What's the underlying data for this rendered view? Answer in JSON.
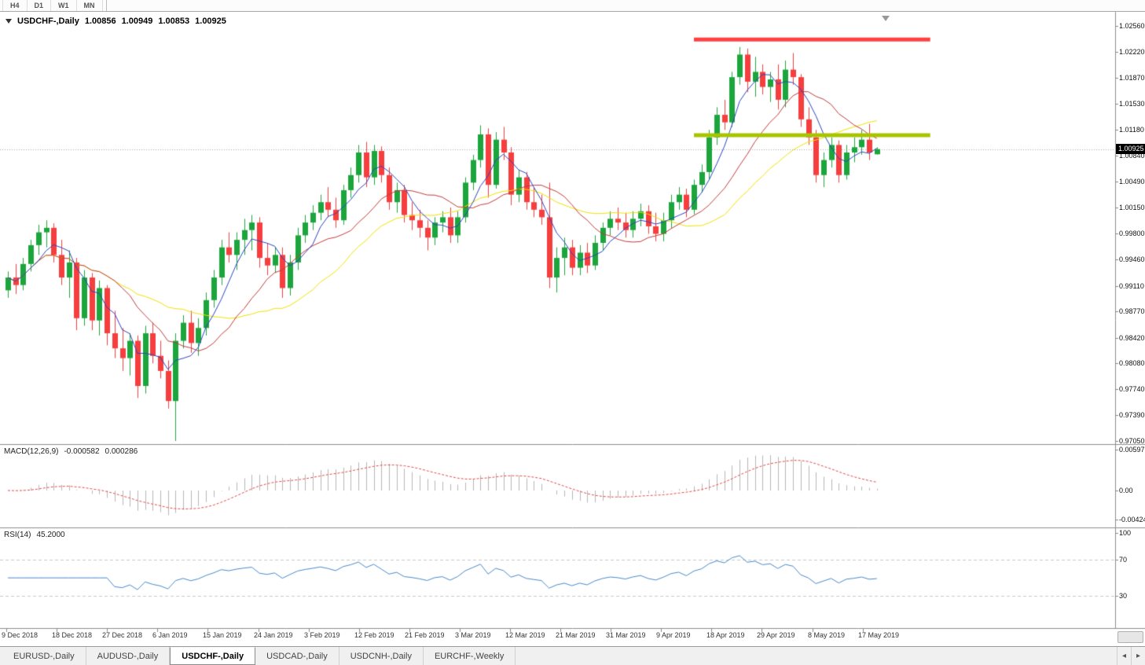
{
  "toolbar": {
    "timeframes": [
      "H4",
      "D1",
      "W1",
      "MN"
    ]
  },
  "chart_header": {
    "symbol": "USDCHF-,Daily",
    "open": "1.00856",
    "high": "1.00949",
    "low": "1.00853",
    "close": "1.00925"
  },
  "price_axis": {
    "labels": [
      "1.02560",
      "1.02220",
      "1.01870",
      "1.01530",
      "1.01180",
      "1.00840",
      "1.00490",
      "1.00150",
      "0.99800",
      "0.99460",
      "0.99110",
      "0.98770",
      "0.98420",
      "0.98080",
      "0.97740",
      "0.97390",
      "0.97050"
    ],
    "current_price": "1.00925"
  },
  "time_axis": {
    "labels": [
      "9 Dec 2018",
      "18 Dec 2018",
      "27 Dec 2018",
      "6 Jan 2019",
      "15 Jan 2019",
      "24 Jan 2019",
      "3 Feb 2019",
      "12 Feb 2019",
      "21 Feb 2019",
      "3 Mar 2019",
      "12 Mar 2019",
      "21 Mar 2019",
      "31 Mar 2019",
      "9 Apr 2019",
      "18 Apr 2019",
      "29 Apr 2019",
      "8 May 2019",
      "17 May 2019"
    ]
  },
  "macd_panel": {
    "title": "MACD(12,26,9)",
    "value_main": "-0.000582",
    "value_signal": "0.000286",
    "axis_labels": [
      "0.00597",
      "0.00",
      "-0.00424"
    ]
  },
  "rsi_panel": {
    "title": "RSI(14)",
    "value": "45.2000",
    "axis_labels": [
      "100",
      "70",
      "30"
    ]
  },
  "tabs": {
    "items": [
      {
        "label": "EURUSD-,Daily",
        "active": false
      },
      {
        "label": "AUDUSD-,Daily",
        "active": false
      },
      {
        "label": "USDCHF-,Daily",
        "active": true
      },
      {
        "label": "USDCAD-,Daily",
        "active": false
      },
      {
        "label": "USDCNH-,Daily",
        "active": false
      },
      {
        "label": "EURCHF-,Weekly",
        "active": false
      }
    ],
    "scroll_left": "◂",
    "scroll_right": "▸"
  },
  "colors": {
    "candle_up": "#1CA53C",
    "candle_down": "#F63E3E",
    "ma_fast": "#2B45C0",
    "ma_medium": "#C13A3A",
    "ma_slow": "#F0E000",
    "resistance": "#FF4040",
    "support": "#A8C400",
    "macd_histogram": "#B6B6B6",
    "macd_signal": "#E04848",
    "rsi_line": "#4888C8",
    "rsi_levels": "#C9C9C9",
    "current_price_line": "#A8A8A8",
    "price_badge_bg": "#000000",
    "price_badge_text": "#FFFFFF",
    "panel_border": "#8C8C8C"
  },
  "chart_data": {
    "type": "candlestick",
    "symbol": "USDCHF",
    "period": "Daily",
    "title": "USDCHF-,Daily",
    "ylim": [
      0.9705,
      1.0256
    ],
    "current_price": 1.00925,
    "candle_format": [
      "date",
      "open",
      "high",
      "low",
      "close"
    ],
    "candles": [
      [
        "2018.12.07",
        0.9905,
        0.993,
        0.9895,
        0.9922
      ],
      [
        "2018.12.10",
        0.9922,
        0.994,
        0.99,
        0.9912
      ],
      [
        "2018.12.11",
        0.9912,
        0.9948,
        0.9905,
        0.994
      ],
      [
        "2018.12.12",
        0.994,
        0.9972,
        0.993,
        0.9965
      ],
      [
        "2018.12.13",
        0.9965,
        0.9992,
        0.9952,
        0.9982
      ],
      [
        "2018.12.14",
        0.9982,
        0.9998,
        0.9962,
        0.9988
      ],
      [
        "2018.12.17",
        0.9988,
        0.9994,
        0.9942,
        0.9952
      ],
      [
        "2018.12.18",
        0.9952,
        0.9972,
        0.9912,
        0.9922
      ],
      [
        "2018.12.19",
        0.9922,
        0.9958,
        0.9895,
        0.9942
      ],
      [
        "2018.12.20",
        0.9942,
        0.9948,
        0.9852,
        0.9868
      ],
      [
        "2018.12.21",
        0.9868,
        0.9932,
        0.9858,
        0.9922
      ],
      [
        "2018.12.24",
        0.9922,
        0.9928,
        0.9852,
        0.9865
      ],
      [
        "2018.12.26",
        0.9865,
        0.9918,
        0.9845,
        0.9908
      ],
      [
        "2018.12.27",
        0.9908,
        0.9912,
        0.9832,
        0.9848
      ],
      [
        "2018.12.28",
        0.9848,
        0.9878,
        0.9815,
        0.9828
      ],
      [
        "2018.12.31",
        0.9828,
        0.9855,
        0.9798,
        0.9815
      ],
      [
        "2019.01.02",
        0.9815,
        0.9848,
        0.9792,
        0.9838
      ],
      [
        "2019.01.03",
        0.9838,
        0.9845,
        0.9762,
        0.9778
      ],
      [
        "2019.01.04",
        0.9778,
        0.9858,
        0.9768,
        0.9848
      ],
      [
        "2019.01.07",
        0.9848,
        0.9862,
        0.9808,
        0.9818
      ],
      [
        "2019.01.08",
        0.9818,
        0.9838,
        0.9788,
        0.9798
      ],
      [
        "2019.01.09",
        0.9798,
        0.9812,
        0.9748,
        0.9758
      ],
      [
        "2019.01.10",
        0.9758,
        0.9848,
        0.9705,
        0.9838
      ],
      [
        "2019.01.11",
        0.9838,
        0.9872,
        0.9828,
        0.9862
      ],
      [
        "2019.01.14",
        0.9862,
        0.9878,
        0.9822,
        0.9835
      ],
      [
        "2019.01.15",
        0.9835,
        0.9868,
        0.9818,
        0.9855
      ],
      [
        "2019.01.16",
        0.9855,
        0.9902,
        0.9845,
        0.9892
      ],
      [
        "2019.01.17",
        0.9892,
        0.9932,
        0.9882,
        0.9922
      ],
      [
        "2019.01.18",
        0.9922,
        0.9972,
        0.9912,
        0.9962
      ],
      [
        "2019.01.21",
        0.9962,
        0.9982,
        0.9942,
        0.9952
      ],
      [
        "2019.01.22",
        0.9952,
        0.9982,
        0.9932,
        0.9972
      ],
      [
        "2019.01.23",
        0.9972,
        1.0,
        0.9952,
        0.9985
      ],
      [
        "2019.01.24",
        0.9985,
        1.0005,
        0.9958,
        0.9995
      ],
      [
        "2019.01.25",
        0.9995,
        1.0002,
        0.9935,
        0.9948
      ],
      [
        "2019.01.28",
        0.9948,
        0.9968,
        0.9925,
        0.9938
      ],
      [
        "2019.01.29",
        0.9938,
        0.9962,
        0.9928,
        0.9952
      ],
      [
        "2019.01.30",
        0.9952,
        0.9962,
        0.9895,
        0.9908
      ],
      [
        "2019.01.31",
        0.9908,
        0.9952,
        0.9898,
        0.9942
      ],
      [
        "2019.02.01",
        0.9942,
        0.9988,
        0.9932,
        0.9978
      ],
      [
        "2019.02.04",
        0.9978,
        1.0005,
        0.9968,
        0.9995
      ],
      [
        "2019.02.05",
        0.9995,
        1.0018,
        0.9985,
        1.0008
      ],
      [
        "2019.02.06",
        1.0008,
        1.0032,
        0.9998,
        1.0022
      ],
      [
        "2019.02.07",
        1.0022,
        1.0042,
        1.0002,
        1.0012
      ],
      [
        "2019.02.08",
        1.0012,
        1.0028,
        0.9988,
        0.9998
      ],
      [
        "2019.02.11",
        0.9998,
        1.0045,
        0.9992,
        1.0038
      ],
      [
        "2019.02.12",
        1.0038,
        1.0068,
        1.0028,
        1.0058
      ],
      [
        "2019.02.13",
        1.0058,
        1.0098,
        1.0048,
        1.0088
      ],
      [
        "2019.02.14",
        1.0088,
        1.0102,
        1.0042,
        1.0055
      ],
      [
        "2019.02.15",
        1.0055,
        1.0098,
        1.0045,
        1.009
      ],
      [
        "2019.02.18",
        1.009,
        1.0096,
        1.0048,
        1.0058
      ],
      [
        "2019.02.19",
        1.0058,
        1.0068,
        1.0012,
        1.0022
      ],
      [
        "2019.02.20",
        1.0022,
        1.0048,
        1.0008,
        1.0038
      ],
      [
        "2019.02.21",
        1.0038,
        1.0045,
        0.9995,
        1.0005
      ],
      [
        "2019.02.22",
        1.0005,
        1.0022,
        0.9985,
        0.9998
      ],
      [
        "2019.02.25",
        0.9998,
        1.0012,
        0.9975,
        0.9988
      ],
      [
        "2019.02.26",
        0.9988,
        0.9998,
        0.9958,
        0.9975
      ],
      [
        "2019.02.27",
        0.9975,
        1.0002,
        0.9965,
        0.9995
      ],
      [
        "2019.02.28",
        0.9995,
        1.001,
        0.9982,
        1.0002
      ],
      [
        "2019.03.01",
        1.0002,
        1.0015,
        0.9968,
        0.9978
      ],
      [
        "2019.03.04",
        0.9978,
        1.001,
        0.9968,
        1.0002
      ],
      [
        "2019.03.05",
        1.0002,
        1.0055,
        0.9995,
        1.0048
      ],
      [
        "2019.03.06",
        1.0048,
        1.0085,
        1.0038,
        1.0078
      ],
      [
        "2019.03.07",
        1.0078,
        1.0124,
        1.0068,
        1.0112
      ],
      [
        "2019.03.08",
        1.0112,
        1.012,
        1.0028,
        1.0045
      ],
      [
        "2019.03.11",
        1.0045,
        1.0115,
        1.004,
        1.0105
      ],
      [
        "2019.03.12",
        1.0105,
        1.0122,
        1.0078,
        1.0088
      ],
      [
        "2019.03.13",
        1.0088,
        1.0095,
        1.0018,
        1.0032
      ],
      [
        "2019.03.14",
        1.0032,
        1.0065,
        1.0022,
        1.0055
      ],
      [
        "2019.03.15",
        1.0055,
        1.0062,
        1.0012,
        1.0022
      ],
      [
        "2019.03.18",
        1.0022,
        1.0042,
        1.0002,
        1.0012
      ],
      [
        "2019.03.19",
        1.0012,
        1.0032,
        0.9992,
        1.0002
      ],
      [
        "2019.03.20",
        1.0002,
        1.0048,
        0.9908,
        0.9922
      ],
      [
        "2019.03.21",
        0.9922,
        0.9962,
        0.9902,
        0.9948
      ],
      [
        "2019.03.22",
        0.9948,
        0.9975,
        0.9925,
        0.9962
      ],
      [
        "2019.03.25",
        0.9962,
        0.9972,
        0.9925,
        0.9935
      ],
      [
        "2019.03.26",
        0.9935,
        0.9965,
        0.9925,
        0.9955
      ],
      [
        "2019.03.27",
        0.9955,
        0.9968,
        0.9928,
        0.9938
      ],
      [
        "2019.03.28",
        0.9938,
        0.9978,
        0.9932,
        0.9968
      ],
      [
        "2019.03.29",
        0.9968,
        0.9995,
        0.9958,
        0.9988
      ],
      [
        "2019.04.01",
        0.9988,
        1.001,
        0.9978,
        1.0
      ],
      [
        "2019.04.02",
        1.0,
        1.0015,
        0.9985,
        0.9995
      ],
      [
        "2019.04.03",
        0.9995,
        1.0008,
        0.9975,
        0.9985
      ],
      [
        "2019.04.04",
        0.9985,
        1.001,
        0.9975,
        1.0
      ],
      [
        "2019.04.05",
        1.0,
        1.002,
        0.999,
        1.001
      ],
      [
        "2019.04.08",
        1.001,
        1.0018,
        0.998,
        0.999
      ],
      [
        "2019.04.09",
        0.999,
        1.0008,
        0.997,
        0.998
      ],
      [
        "2019.04.10",
        0.998,
        1.0008,
        0.997,
        0.9998
      ],
      [
        "2019.04.11",
        0.9998,
        1.0032,
        0.9988,
        1.0022
      ],
      [
        "2019.04.12",
        1.0022,
        1.0042,
        1.0012,
        1.0032
      ],
      [
        "2019.04.15",
        1.0032,
        1.004,
        1.0002,
        1.0012
      ],
      [
        "2019.04.16",
        1.0012,
        1.0052,
        1.0006,
        1.0045
      ],
      [
        "2019.04.17",
        1.0045,
        1.0072,
        1.0035,
        1.0062
      ],
      [
        "2019.04.18",
        1.0062,
        1.0118,
        1.0052,
        1.0108
      ],
      [
        "2019.04.19",
        1.0108,
        1.0148,
        1.0098,
        1.0138
      ],
      [
        "2019.04.22",
        1.0138,
        1.0158,
        1.0118,
        1.0128
      ],
      [
        "2019.04.23",
        1.0128,
        1.0195,
        1.0122,
        1.0188
      ],
      [
        "2019.04.24",
        1.0188,
        1.0228,
        1.0178,
        1.0218
      ],
      [
        "2019.04.25",
        1.0218,
        1.0226,
        1.0168,
        1.0182
      ],
      [
        "2019.04.26",
        1.0182,
        1.0215,
        1.0162,
        1.0195
      ],
      [
        "2019.04.29",
        1.0195,
        1.0205,
        1.0165,
        1.0175
      ],
      [
        "2019.04.30",
        1.0175,
        1.0195,
        1.0155,
        1.0185
      ],
      [
        "2019.05.01",
        1.0185,
        1.0205,
        1.0145,
        1.0158
      ],
      [
        "2019.05.02",
        1.0158,
        1.021,
        1.0148,
        1.0198
      ],
      [
        "2019.05.03",
        1.0198,
        1.022,
        1.0178,
        1.0188
      ],
      [
        "2019.05.06",
        1.0188,
        1.0192,
        1.0122,
        1.0132
      ],
      [
        "2019.05.07",
        1.0132,
        1.0148,
        1.0098,
        1.0108
      ],
      [
        "2019.05.08",
        1.0108,
        1.0118,
        1.0048,
        1.0058
      ],
      [
        "2019.05.09",
        1.0058,
        1.0088,
        1.0042,
        1.0078
      ],
      [
        "2019.05.10",
        1.0078,
        1.0108,
        1.0068,
        1.0098
      ],
      [
        "2019.05.13",
        1.0098,
        1.0104,
        1.0048,
        1.0058
      ],
      [
        "2019.05.14",
        1.0058,
        1.0098,
        1.0052,
        1.0088
      ],
      [
        "2019.05.15",
        1.0088,
        1.0108,
        1.0075,
        1.0095
      ],
      [
        "2019.05.16",
        1.0095,
        1.0118,
        1.0085,
        1.0105
      ],
      [
        "2019.05.17",
        1.0105,
        1.0126,
        1.0078,
        1.0088
      ],
      [
        "2019.05.20",
        1.00856,
        1.00949,
        1.00853,
        1.00925
      ]
    ],
    "moving_averages": [
      {
        "type": "sma",
        "period": 5,
        "color_key": "ma_fast"
      },
      {
        "type": "sma",
        "period": 13,
        "color_key": "ma_medium"
      },
      {
        "type": "sma",
        "period": 24,
        "color_key": "ma_slow"
      }
    ],
    "horizontal_lines": [
      {
        "name": "resistance",
        "price": 1.0238,
        "start_index": 90,
        "end_index": 121,
        "color_key": "resistance",
        "thickness": 5
      },
      {
        "name": "support",
        "price": 1.0111,
        "start_index": 90,
        "end_index": 121,
        "color_key": "support",
        "thickness": 5
      }
    ],
    "indicators": {
      "macd": {
        "fast": 12,
        "slow": 26,
        "signal": 9,
        "current_main": -0.000582,
        "current_signal": 0.000286,
        "ylim": [
          -0.00424,
          0.00597
        ]
      },
      "rsi": {
        "period": 14,
        "current": 45.2,
        "levels": [
          70,
          30
        ],
        "ylim": [
          0,
          100
        ]
      }
    }
  }
}
